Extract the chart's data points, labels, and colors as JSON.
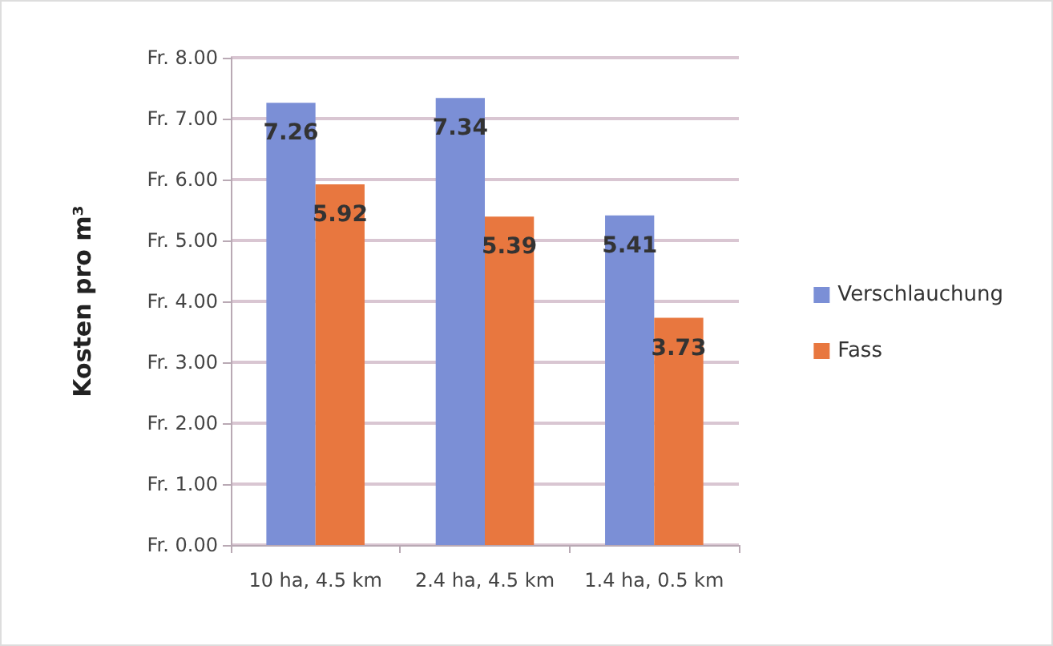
{
  "chart_data": {
    "type": "bar",
    "ylabel": "Kosten pro m³",
    "categories": [
      "10 ha, 4.5 km",
      "2.4 ha, 4.5 km",
      "1.4 ha, 0.5 km"
    ],
    "series": [
      {
        "name": "Verschlauchung",
        "color": "#7b8fd6",
        "values": [
          7.26,
          7.34,
          5.41
        ]
      },
      {
        "name": "Fass",
        "color": "#e8773f",
        "values": [
          5.92,
          5.39,
          3.73
        ]
      }
    ],
    "ylim": [
      0,
      8
    ],
    "yticks": [
      {
        "value": 0,
        "label": "Fr. 0.00"
      },
      {
        "value": 1,
        "label": "Fr. 1.00"
      },
      {
        "value": 2,
        "label": "Fr. 2.00"
      },
      {
        "value": 3,
        "label": "Fr. 3.00"
      },
      {
        "value": 4,
        "label": "Fr. 4.00"
      },
      {
        "value": 5,
        "label": "Fr. 5.00"
      },
      {
        "value": 6,
        "label": "Fr. 6.00"
      },
      {
        "value": 7,
        "label": "Fr. 7.00"
      },
      {
        "value": 8,
        "label": "Fr. 8.00"
      }
    ],
    "data_labels": true,
    "grid": "y",
    "legend": "right"
  }
}
